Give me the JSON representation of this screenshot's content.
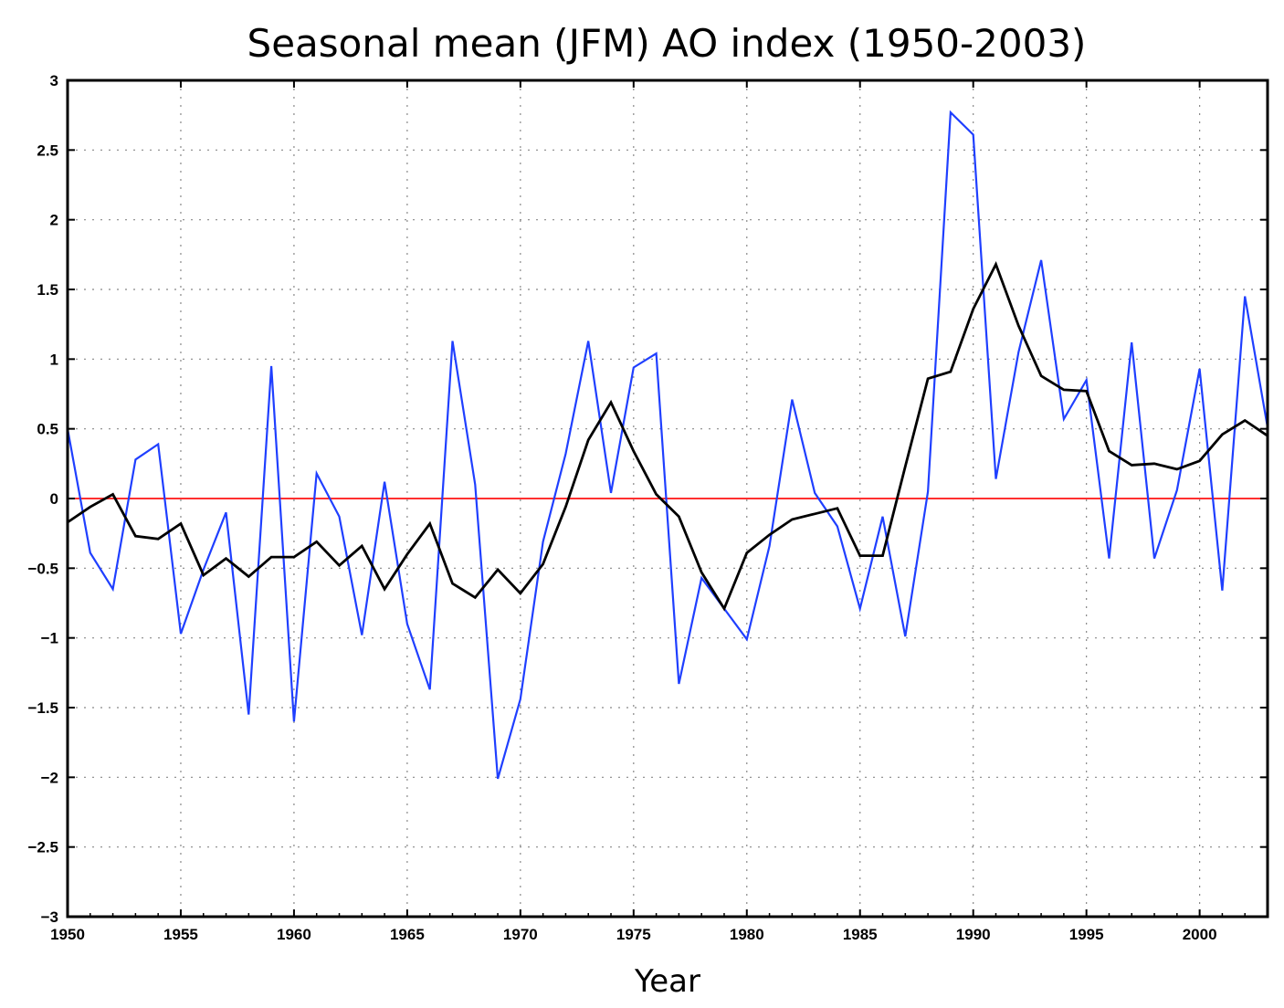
{
  "chart_data": {
    "type": "line",
    "title": "Seasonal mean (JFM) AO index (1950-2003)",
    "xlabel": "Year",
    "ylabel": "",
    "xlim": [
      1950,
      2003
    ],
    "ylim": [
      -3,
      3
    ],
    "x_ticks": [
      1950,
      1955,
      1960,
      1965,
      1970,
      1975,
      1980,
      1985,
      1990,
      1995,
      2000
    ],
    "y_ticks": [
      -3,
      -2.5,
      -2,
      -1.5,
      -1,
      -0.5,
      0,
      0.5,
      1,
      1.5,
      2,
      2.5,
      3
    ],
    "grid": true,
    "reference_line": {
      "y": 0,
      "color": "#ff3030"
    },
    "x": [
      1950,
      1951,
      1952,
      1953,
      1954,
      1955,
      1956,
      1957,
      1958,
      1959,
      1960,
      1961,
      1962,
      1963,
      1964,
      1965,
      1966,
      1967,
      1968,
      1969,
      1970,
      1971,
      1972,
      1973,
      1974,
      1975,
      1976,
      1977,
      1978,
      1979,
      1980,
      1981,
      1982,
      1983,
      1984,
      1985,
      1986,
      1987,
      1988,
      1989,
      1990,
      1991,
      1992,
      1993,
      1994,
      1995,
      1996,
      1997,
      1998,
      1999,
      2000,
      2001,
      2002,
      2003
    ],
    "series": [
      {
        "color": "#1f3fff",
        "values": [
          0.5,
          -0.39,
          -0.65,
          0.28,
          0.39,
          -0.97,
          -0.51,
          -0.1,
          -1.55,
          0.95,
          -1.6,
          0.18,
          -0.13,
          -0.98,
          0.12,
          -0.9,
          -1.37,
          1.13,
          0.1,
          -2.01,
          -1.44,
          -0.31,
          0.32,
          1.13,
          0.04,
          0.94,
          1.04,
          -1.33,
          -0.57,
          -0.79,
          -1.01,
          -0.34,
          0.71,
          0.04,
          -0.2,
          -0.79,
          -0.13,
          -0.99,
          0.05,
          2.77,
          2.61,
          0.14,
          1.05,
          1.71,
          0.57,
          0.85,
          -0.43,
          1.12,
          -0.43,
          0.06,
          0.93,
          -0.66,
          1.45,
          0.51
        ]
      },
      {
        "color": "#000000",
        "values": [
          -0.17,
          -0.06,
          0.03,
          -0.27,
          -0.29,
          -0.18,
          -0.55,
          -0.43,
          -0.56,
          -0.42,
          -0.42,
          -0.31,
          -0.48,
          -0.34,
          -0.65,
          -0.4,
          -0.18,
          -0.61,
          -0.71,
          -0.51,
          -0.68,
          -0.47,
          -0.06,
          0.42,
          0.69,
          0.34,
          0.03,
          -0.13,
          -0.53,
          -0.79,
          -0.39,
          -0.26,
          -0.15,
          -0.11,
          -0.07,
          -0.41,
          -0.41,
          0.23,
          0.86,
          0.91,
          1.36,
          1.68,
          1.24,
          0.88,
          0.78,
          0.77,
          0.34,
          0.24,
          0.25,
          0.21,
          0.27,
          0.46,
          0.56,
          0.45
        ]
      }
    ]
  }
}
